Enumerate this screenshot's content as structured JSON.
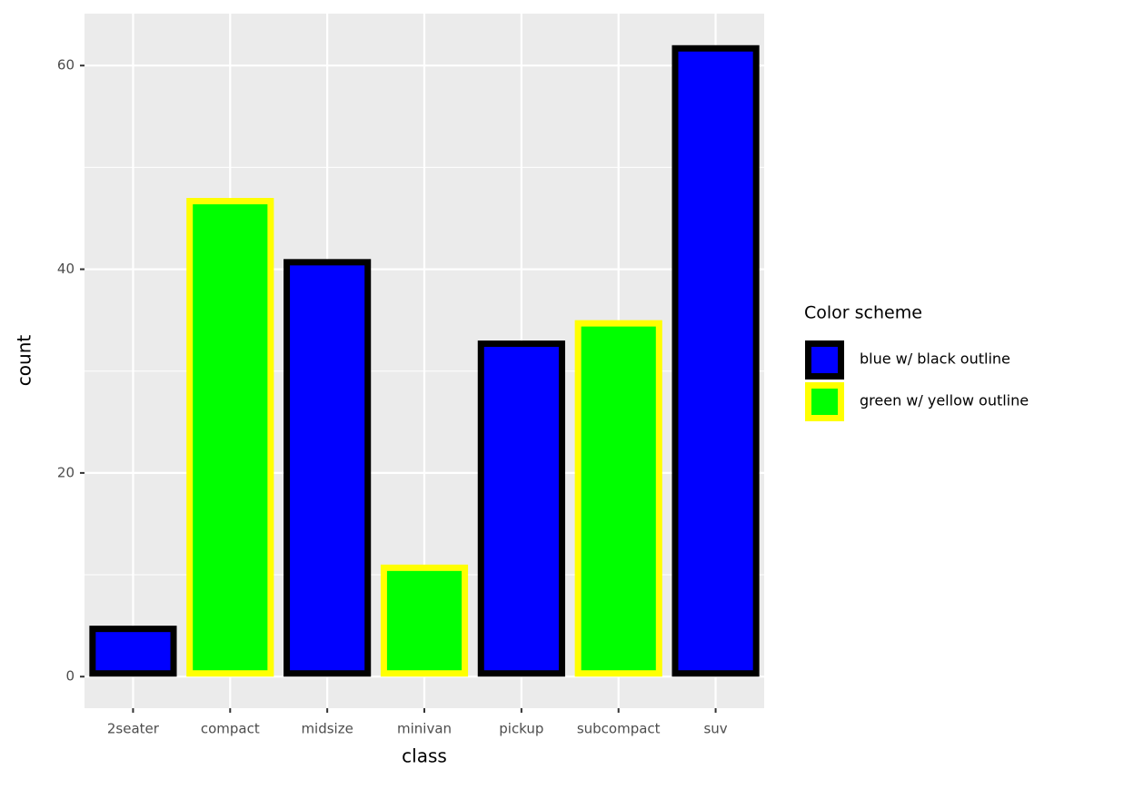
{
  "chart_data": {
    "type": "bar",
    "x_label": "class",
    "y_label": "count",
    "categories": [
      "2seater",
      "compact",
      "midsize",
      "minivan",
      "pickup",
      "subcompact",
      "suv"
    ],
    "series": [
      {
        "name": "blue w/ black outline",
        "color": "#0000ff",
        "outline": "#000000",
        "values": [
          5,
          null,
          41,
          null,
          33,
          null,
          62
        ]
      },
      {
        "name": "green w/ yellow outline",
        "color": "#00ff00",
        "outline": "#ffff00",
        "values": [
          null,
          47,
          null,
          11,
          null,
          35,
          null
        ]
      }
    ],
    "legend_title": "Color scheme",
    "legend": "right",
    "ylim": [
      -3.1,
      65.1
    ],
    "yticks": [
      0,
      20,
      40,
      60
    ],
    "minor_yticks": [
      10,
      30,
      50
    ],
    "grid": true
  }
}
